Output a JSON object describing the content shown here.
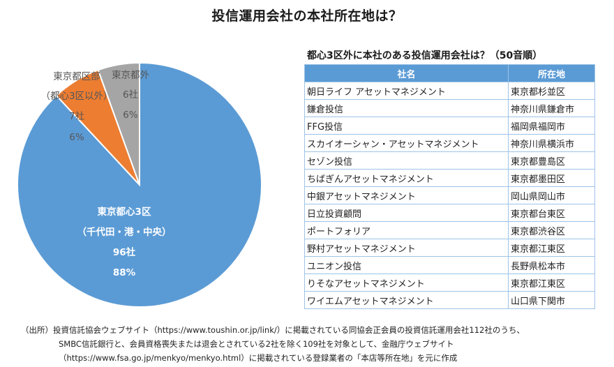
{
  "title": "投信運用会社の本社所在地は？",
  "chart_data": [
    {
      "type": "pie",
      "title": "",
      "slices": [
        {
          "label": [
            "東京都心3区",
            "（千代田・港・中央）"
          ],
          "count": "96社",
          "percent": "88%",
          "value": 96,
          "color": "#5b9bd5"
        },
        {
          "label": [
            "東京都区部",
            "（都心3区以外）"
          ],
          "count": "7社",
          "percent": "6%",
          "value": 7,
          "color": "#ed7d31"
        },
        {
          "label": [
            "東京都外"
          ],
          "count": "6社",
          "percent": "6%",
          "value": 6,
          "color": "#a5a5a5"
        }
      ]
    },
    {
      "type": "table",
      "title": "都心3区外に本社のある投信運用会社は？（50音順）",
      "columns": [
        "社名",
        "所在地"
      ],
      "rows": [
        [
          "朝日ライフ アセットマネジメント",
          "東京都杉並区"
        ],
        [
          "鎌倉投信",
          "神奈川県鎌倉市"
        ],
        [
          "FFG投信",
          "福岡県福岡市"
        ],
        [
          "スカイオーシャン・アセットマネジメント",
          "神奈川県横浜市"
        ],
        [
          "セゾン投信",
          "東京都豊島区"
        ],
        [
          "ちばぎんアセットマネジメント",
          "東京都墨田区"
        ],
        [
          "中銀アセットマネジメント",
          "岡山県岡山市"
        ],
        [
          "日立投資顧問",
          "東京都台東区"
        ],
        [
          "ポートフォリア",
          "東京都渋谷区"
        ],
        [
          "野村アセットマネジメント",
          "東京都江東区"
        ],
        [
          "ユニオン投信",
          "長野県松本市"
        ],
        [
          "りそなアセットマネジメント",
          "東京都江東区"
        ],
        [
          "ワイエムアセットマネジメント",
          "山口県下関市"
        ]
      ]
    }
  ],
  "source": [
    "（出所）投資信託協会ウェブサイト（https://www.toushin.or.jp/link/）に掲載されている同協会正会員の投資信託運用会社112社のうち、",
    "SMBC信託銀行と、会員資格喪失または退会とされている2社を除く109社を対象として、金融庁ウェブサイト",
    "（https://www.fsa.go.jp/menkyo/menkyo.html）に掲載されている登録業者の「本店等所在地」を元に作成"
  ]
}
